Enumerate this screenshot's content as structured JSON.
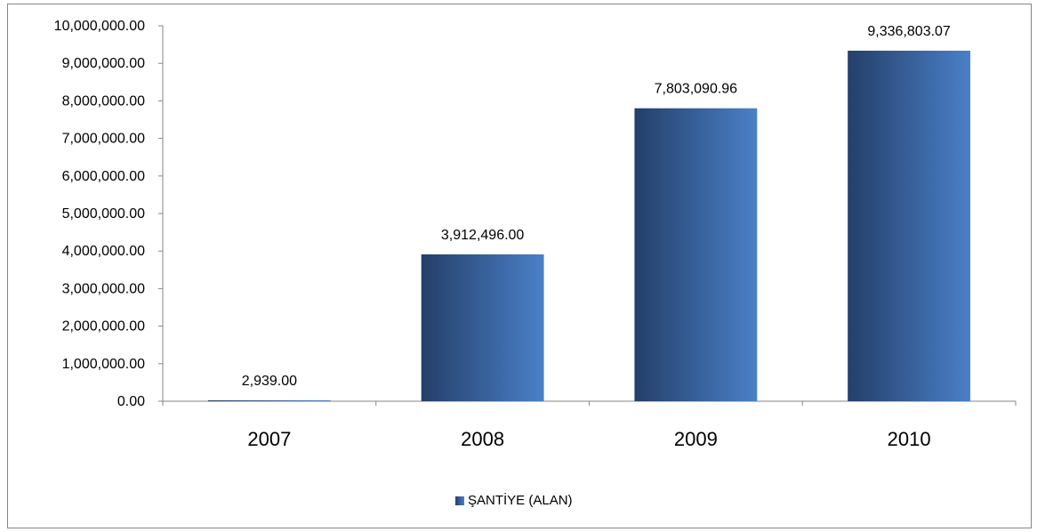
{
  "chart_data": {
    "type": "bar",
    "categories": [
      "2007",
      "2008",
      "2009",
      "2010"
    ],
    "series": [
      {
        "name": "ŞANTİYE (ALAN)",
        "values": [
          2939.0,
          3912496.0,
          7803090.96,
          9336803.07
        ],
        "data_labels": [
          "2,939.00",
          "3,912,496.00",
          "7,803,090.96",
          "9,336,803.07"
        ]
      }
    ],
    "title": "",
    "xlabel": "",
    "ylabel": "",
    "ylim": [
      0,
      10000000
    ],
    "yticks": [
      0,
      1000000,
      2000000,
      3000000,
      4000000,
      5000000,
      6000000,
      7000000,
      8000000,
      9000000,
      10000000
    ],
    "ytick_labels": [
      "0.00",
      "1,000,000.00",
      "2,000,000.00",
      "3,000,000.00",
      "4,000,000.00",
      "5,000,000.00",
      "6,000,000.00",
      "7,000,000.00",
      "8,000,000.00",
      "9,000,000.00",
      "10,000,000.00"
    ],
    "grid": false,
    "legend_position": "bottom",
    "colors": {
      "bar_dark": "#243f6a",
      "bar_light": "#4a80c8",
      "axis": "#868686"
    }
  },
  "legend": {
    "label": "ŞANTİYE (ALAN)"
  }
}
